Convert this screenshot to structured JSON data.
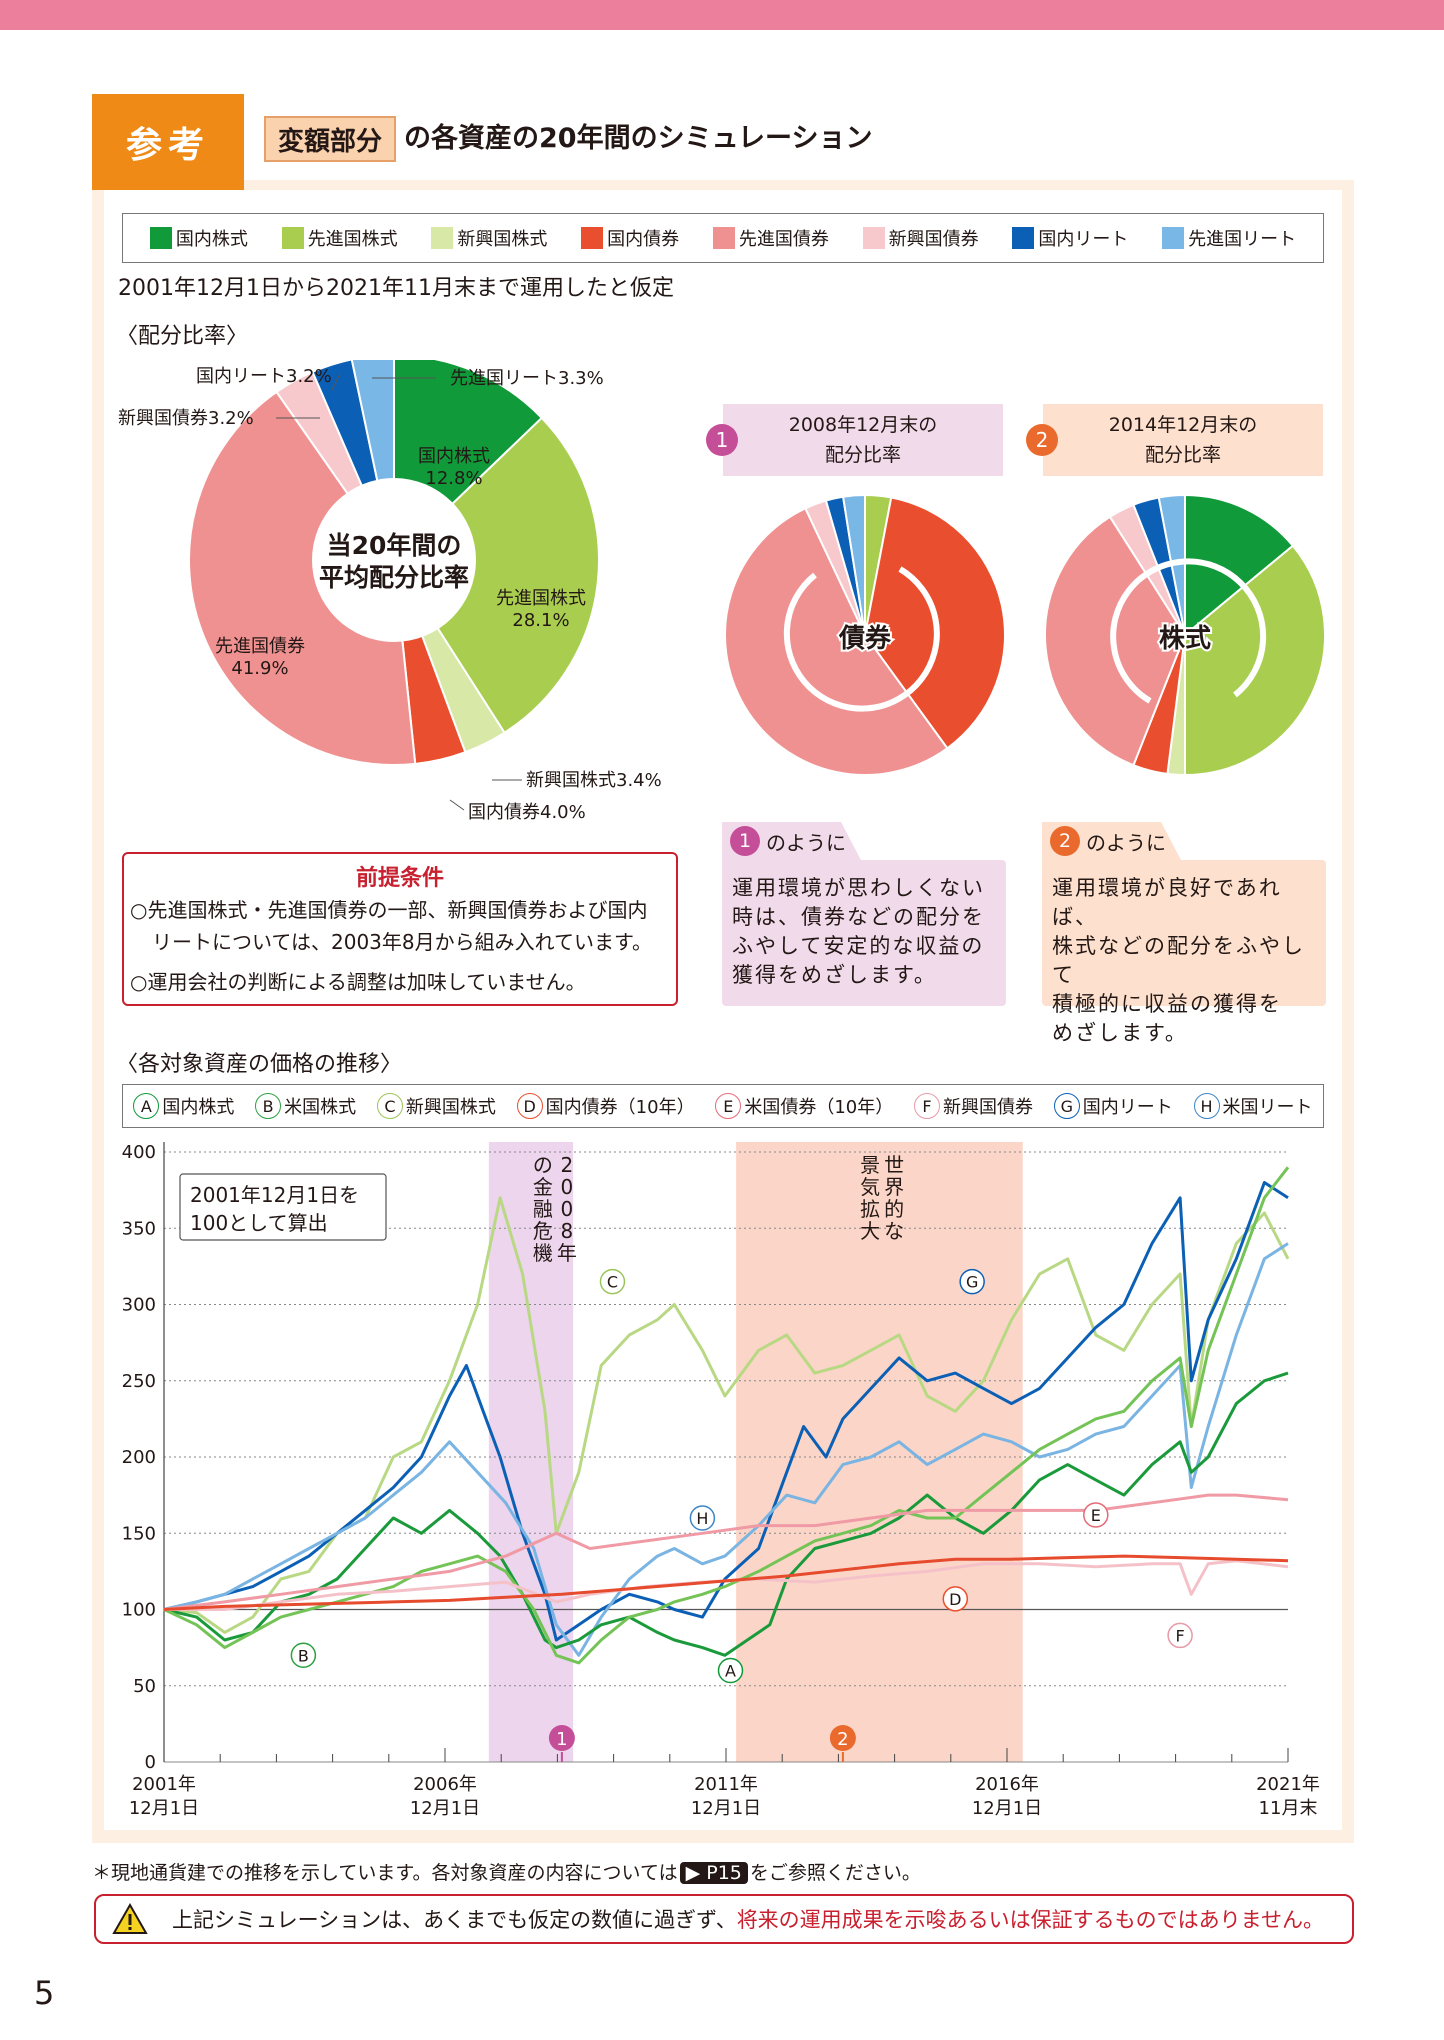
{
  "header": {
    "tab_label": "参考",
    "chip_label": "変額部分",
    "title_rest": "の各資産の20年間のシミュレーション"
  },
  "legend": [
    {
      "label": "国内株式",
      "color": "#109a3a"
    },
    {
      "label": "先進国株式",
      "color": "#a9ce4f"
    },
    {
      "label": "新興国株式",
      "color": "#d7e8a7"
    },
    {
      "label": "国内債券",
      "color": "#e94f2f"
    },
    {
      "label": "先進国債券",
      "color": "#f09191"
    },
    {
      "label": "新興国債券",
      "color": "#f7c9cd"
    },
    {
      "label": "国内リート",
      "color": "#0b60b6"
    },
    {
      "label": "先進国リート",
      "color": "#79b7e6"
    }
  ],
  "assumption": "2001年12月1日から2021年11月末まで運用したと仮定",
  "alloc_heading": "〈配分比率〉",
  "avg_pie": {
    "center_label_1": "当20年間の",
    "center_label_2": "平均配分比率",
    "slices": [
      {
        "name": "国内株式",
        "value": 12.8,
        "color": "#109a3a"
      },
      {
        "name": "先進国株式",
        "value": 28.1,
        "color": "#a9ce4f"
      },
      {
        "name": "新興国株式",
        "value": 3.4,
        "color": "#d7e8a7"
      },
      {
        "name": "国内債券",
        "value": 4.0,
        "color": "#e94f2f"
      },
      {
        "name": "先進国債券",
        "value": 41.9,
        "color": "#f09191"
      },
      {
        "name": "新興国債券",
        "value": 3.2,
        "color": "#f7c9cd"
      },
      {
        "name": "国内リート",
        "value": 3.2,
        "color": "#0b60b6"
      },
      {
        "name": "先進国リート",
        "value": 3.3,
        "color": "#79b7e6"
      }
    ],
    "labels": {
      "jp_stock": "国内株式\n12.8%",
      "dev_stock": "先進国株式\n28.1%",
      "dev_bond": "先進国債券\n41.9%",
      "em_stock": "新興国株式3.4%",
      "jp_bond": "国内債券4.0%",
      "em_bond": "新興国債券3.2%",
      "jp_reit": "国内リート3.2%",
      "dev_reit": "先進国リート3.3%"
    }
  },
  "pie_2008": {
    "badge": "1",
    "title_1": "2008年12月末の",
    "title_2": "配分比率",
    "center": "債券",
    "slices": [
      {
        "name": "先進国株式",
        "value": 3.0,
        "color": "#a9ce4f"
      },
      {
        "name": "国内債券",
        "value": 37.0,
        "color": "#e94f2f"
      },
      {
        "name": "先進国債券",
        "value": 53.0,
        "color": "#f09191"
      },
      {
        "name": "新興国債券",
        "value": 2.5,
        "color": "#f7c9cd"
      },
      {
        "name": "国内リート",
        "value": 2.0,
        "color": "#0b60b6"
      },
      {
        "name": "先進国リート",
        "value": 2.5,
        "color": "#79b7e6"
      }
    ]
  },
  "pie_2014": {
    "badge": "2",
    "title_1": "2014年12月末の",
    "title_2": "配分比率",
    "center": "株式",
    "slices": [
      {
        "name": "国内株式",
        "value": 14.0,
        "color": "#109a3a"
      },
      {
        "name": "先進国株式",
        "value": 36.0,
        "color": "#a9ce4f"
      },
      {
        "name": "新興国株式",
        "value": 2.0,
        "color": "#d7e8a7"
      },
      {
        "name": "国内債券",
        "value": 4.0,
        "color": "#e94f2f"
      },
      {
        "name": "先進国債券",
        "value": 35.0,
        "color": "#f09191"
      },
      {
        "name": "新興国債券",
        "value": 3.0,
        "color": "#f7c9cd"
      },
      {
        "name": "国内リート",
        "value": 3.0,
        "color": "#0b60b6"
      },
      {
        "name": "先進国リート",
        "value": 3.0,
        "color": "#79b7e6"
      }
    ]
  },
  "premise": {
    "title": "前提条件",
    "line1a": "○先進国株式・先進国債券の一部、新興国債券および国内",
    "line1b": "リートについては、2003年8月から組み入れています。",
    "line2": "○運用会社の判断による調整は加味していません。"
  },
  "card1": {
    "badge": "1",
    "tag": "のように",
    "lines": [
      "運用環境が思わしくない",
      "時は、債券などの配分を",
      "ふやして安定的な収益の",
      "獲得をめざします。"
    ],
    "bg": "#f1dbeb"
  },
  "card2": {
    "badge": "2",
    "tag": "のように",
    "lines": [
      "運用環境が良好であれば、",
      "株式などの配分をふやして",
      "積極的に収益の獲得を",
      "めざします。"
    ],
    "bg": "#fde0cd"
  },
  "price_heading": "〈各対象資産の価格の推移〉",
  "legend2": [
    {
      "key": "A",
      "label": "国内株式",
      "color": "#109a3a"
    },
    {
      "key": "B",
      "label": "米国株式",
      "color": "#2ea042"
    },
    {
      "key": "C",
      "label": "新興国株式",
      "color": "#9bc45a"
    },
    {
      "key": "D",
      "label": "国内債券（10年）",
      "color": "#e94f2f"
    },
    {
      "key": "E",
      "label": "米国債券（10年）",
      "color": "#e46b7a"
    },
    {
      "key": "F",
      "label": "新興国債券",
      "color": "#e89aa9"
    },
    {
      "key": "G",
      "label": "国内リート",
      "color": "#0b60b6"
    },
    {
      "key": "H",
      "label": "米国リート",
      "color": "#3b86c9"
    }
  ],
  "chart_data": {
    "type": "line",
    "yticks": [
      "400",
      "350",
      "300",
      "250",
      "200",
      "150",
      "100",
      "50",
      "0"
    ],
    "ylim": [
      0,
      400
    ],
    "xlim": [
      2001.92,
      2021.92
    ],
    "xtick_labels": [
      {
        "l1": "2001年",
        "l2": "12月1日"
      },
      {
        "l1": "2006年",
        "l2": "12月1日"
      },
      {
        "l1": "2011年",
        "l2": "12月1日"
      },
      {
        "l1": "2016年",
        "l2": "12月1日"
      },
      {
        "l1": "2021年",
        "l2": "11月末"
      }
    ],
    "base_note_1": "2001年12月1日を",
    "base_note_2": "100として算出",
    "crisis_label": "2008年の金融危機",
    "boom_label": "世界的な景気拡大",
    "crisis_range": [
      2007.7,
      2009.2
    ],
    "boom_range": [
      2012.1,
      2017.2
    ],
    "marker_1": "1",
    "marker_2": "2",
    "series": [
      {
        "key": "C",
        "name": "新興国株式",
        "color": "#b9d884",
        "x": [
          2001.92,
          2002.5,
          2003.0,
          2003.5,
          2004.0,
          2004.5,
          2005.0,
          2005.5,
          2006.0,
          2006.5,
          2007.0,
          2007.5,
          2007.9,
          2008.3,
          2008.7,
          2008.9,
          2009.3,
          2009.7,
          2010.2,
          2010.7,
          2011.0,
          2011.5,
          2011.9,
          2012.5,
          2013.0,
          2013.5,
          2014.0,
          2014.5,
          2015.0,
          2015.5,
          2016.0,
          2016.5,
          2017.0,
          2017.5,
          2018.0,
          2018.5,
          2019.0,
          2019.5,
          2020.0,
          2020.2,
          2020.5,
          2021.0,
          2021.5,
          2021.92
        ],
        "y": [
          100,
          98,
          85,
          95,
          120,
          125,
          150,
          160,
          200,
          210,
          250,
          300,
          370,
          320,
          230,
          150,
          190,
          260,
          280,
          290,
          300,
          270,
          240,
          270,
          280,
          255,
          260,
          270,
          280,
          240,
          230,
          250,
          290,
          320,
          330,
          280,
          270,
          300,
          320,
          220,
          290,
          340,
          360,
          330
        ]
      },
      {
        "key": "G",
        "name": "国内リート",
        "color": "#0b60b6",
        "x": [
          2001.92,
          2002.5,
          2003.0,
          2003.5,
          2004.0,
          2004.5,
          2005.0,
          2005.5,
          2006.0,
          2006.5,
          2007.0,
          2007.3,
          2007.6,
          2007.9,
          2008.3,
          2008.7,
          2008.9,
          2009.3,
          2009.7,
          2010.2,
          2010.7,
          2011.0,
          2011.5,
          2011.9,
          2012.5,
          2013.0,
          2013.3,
          2013.7,
          2014.0,
          2014.5,
          2015.0,
          2015.5,
          2016.0,
          2016.5,
          2017.0,
          2017.5,
          2018.0,
          2018.5,
          2019.0,
          2019.5,
          2020.0,
          2020.2,
          2020.5,
          2021.0,
          2021.5,
          2021.92
        ],
        "y": [
          100,
          105,
          110,
          115,
          125,
          135,
          150,
          165,
          180,
          200,
          240,
          260,
          230,
          200,
          150,
          110,
          80,
          90,
          100,
          110,
          105,
          100,
          95,
          120,
          140,
          190,
          220,
          200,
          225,
          245,
          265,
          250,
          255,
          245,
          235,
          245,
          265,
          285,
          300,
          340,
          370,
          250,
          290,
          330,
          380,
          370
        ]
      },
      {
        "key": "H",
        "name": "米国リート",
        "color": "#7ab4e3",
        "x": [
          2001.92,
          2002.5,
          2003.0,
          2003.5,
          2004.0,
          2004.5,
          2005.0,
          2005.5,
          2006.0,
          2006.5,
          2007.0,
          2007.5,
          2008.0,
          2008.5,
          2008.9,
          2009.3,
          2009.7,
          2010.2,
          2010.7,
          2011.0,
          2011.5,
          2011.9,
          2012.5,
          2013.0,
          2013.5,
          2014.0,
          2014.5,
          2015.0,
          2015.5,
          2016.0,
          2016.5,
          2017.0,
          2017.5,
          2018.0,
          2018.5,
          2019.0,
          2019.5,
          2020.0,
          2020.2,
          2020.5,
          2021.0,
          2021.5,
          2021.92
        ],
        "y": [
          100,
          105,
          110,
          120,
          130,
          140,
          150,
          160,
          175,
          190,
          210,
          190,
          170,
          140,
          90,
          70,
          95,
          120,
          135,
          140,
          130,
          135,
          155,
          175,
          170,
          195,
          200,
          210,
          195,
          205,
          215,
          210,
          200,
          205,
          215,
          220,
          240,
          260,
          180,
          220,
          280,
          330,
          340
        ]
      },
      {
        "key": "A",
        "name": "国内株式",
        "color": "#1a9a3a",
        "x": [
          2001.92,
          2002.5,
          2003.0,
          2003.5,
          2004.0,
          2004.5,
          2005.0,
          2005.5,
          2006.0,
          2006.5,
          2007.0,
          2007.5,
          2007.9,
          2008.3,
          2008.7,
          2008.9,
          2009.3,
          2009.7,
          2010.2,
          2010.7,
          2011.0,
          2011.5,
          2011.9,
          2012.3,
          2012.7,
          2013.0,
          2013.5,
          2014.0,
          2014.5,
          2015.0,
          2015.5,
          2016.0,
          2016.5,
          2017.0,
          2017.5,
          2018.0,
          2018.5,
          2019.0,
          2019.5,
          2020.0,
          2020.2,
          2020.5,
          2021.0,
          2021.5,
          2021.92
        ],
        "y": [
          100,
          95,
          80,
          85,
          105,
          110,
          120,
          140,
          160,
          150,
          165,
          150,
          135,
          110,
          80,
          75,
          80,
          90,
          95,
          85,
          80,
          75,
          70,
          80,
          90,
          120,
          140,
          145,
          150,
          160,
          175,
          160,
          150,
          165,
          185,
          195,
          185,
          175,
          195,
          210,
          190,
          200,
          235,
          250,
          255
        ]
      },
      {
        "key": "B",
        "name": "米国株式",
        "color": "#74c356",
        "x": [
          2001.92,
          2002.5,
          2003.0,
          2003.5,
          2004.0,
          2004.5,
          2005.0,
          2005.5,
          2006.0,
          2006.5,
          2007.0,
          2007.5,
          2008.0,
          2008.5,
          2008.9,
          2009.3,
          2009.7,
          2010.2,
          2010.7,
          2011.0,
          2011.5,
          2011.9,
          2012.5,
          2013.0,
          2013.5,
          2014.0,
          2014.5,
          2015.0,
          2015.5,
          2016.0,
          2016.5,
          2017.0,
          2017.5,
          2018.0,
          2018.5,
          2019.0,
          2019.5,
          2020.0,
          2020.2,
          2020.5,
          2021.0,
          2021.5,
          2021.92
        ],
        "y": [
          100,
          90,
          75,
          85,
          95,
          100,
          105,
          110,
          115,
          125,
          130,
          135,
          125,
          100,
          70,
          65,
          80,
          95,
          100,
          105,
          110,
          115,
          125,
          135,
          145,
          150,
          155,
          165,
          160,
          160,
          175,
          190,
          205,
          215,
          225,
          230,
          250,
          265,
          220,
          270,
          320,
          370,
          390
        ]
      },
      {
        "key": "E",
        "name": "米国債券（10年）",
        "color": "#ef9aa4",
        "x": [
          2001.92,
          2003.0,
          2004.0,
          2005.0,
          2006.0,
          2007.0,
          2008.0,
          2008.9,
          2009.5,
          2010.5,
          2011.5,
          2012.5,
          2013.5,
          2014.5,
          2015.5,
          2016.5,
          2017.5,
          2018.5,
          2019.5,
          2020.5,
          2021.0,
          2021.92
        ],
        "y": [
          100,
          105,
          110,
          115,
          120,
          125,
          135,
          150,
          140,
          145,
          150,
          155,
          155,
          160,
          165,
          165,
          165,
          165,
          170,
          175,
          175,
          172
        ]
      },
      {
        "key": "F",
        "name": "新興国債券",
        "color": "#f5c1c9",
        "x": [
          2001.92,
          2003.0,
          2004.0,
          2005.0,
          2006.0,
          2007.0,
          2008.0,
          2008.9,
          2009.5,
          2010.5,
          2011.5,
          2012.5,
          2013.5,
          2014.5,
          2015.5,
          2016.5,
          2017.5,
          2018.5,
          2019.5,
          2020.0,
          2020.2,
          2020.5,
          2021.0,
          2021.92
        ],
        "y": [
          100,
          100,
          105,
          110,
          112,
          115,
          118,
          105,
          110,
          115,
          118,
          120,
          118,
          122,
          125,
          130,
          130,
          128,
          130,
          130,
          110,
          130,
          132,
          128
        ]
      },
      {
        "key": "D",
        "name": "国内債券（10年）",
        "color": "#e54b2c",
        "x": [
          2001.92,
          2003.0,
          2004.0,
          2005.0,
          2006.0,
          2007.0,
          2008.0,
          2009.0,
          2010.0,
          2011.0,
          2012.0,
          2013.0,
          2014.0,
          2015.0,
          2016.0,
          2017.0,
          2018.0,
          2019.0,
          2020.0,
          2021.0,
          2021.92
        ],
        "y": [
          100,
          102,
          103,
          104,
          105,
          106,
          108,
          110,
          113,
          116,
          119,
          122,
          126,
          130,
          133,
          133,
          134,
          135,
          134,
          133,
          132
        ]
      }
    ],
    "point_labels": [
      {
        "key": "C",
        "x": 2009.9,
        "y": 315
      },
      {
        "key": "H",
        "x": 2011.5,
        "y": 160
      },
      {
        "key": "G",
        "x": 2016.3,
        "y": 315
      },
      {
        "key": "E",
        "x": 2018.5,
        "y": 162
      },
      {
        "key": "D",
        "x": 2016.0,
        "y": 107
      },
      {
        "key": "F",
        "x": 2020.0,
        "y": 83
      },
      {
        "key": "A",
        "x": 2012.0,
        "y": 60
      },
      {
        "key": "B",
        "x": 2004.4,
        "y": 70
      }
    ]
  },
  "footer_note_a": "＊現地通貨建での推移を示しています。各対象資産の内容については",
  "footer_ref": "▶ P15",
  "footer_note_b": "をご参照ください。",
  "warning_a": "上記シミュレーションは、あくまでも仮定の数値に過ぎず、",
  "warning_b": "将来の運用成果を示唆あるいは保証するものではありません。",
  "page_number": "5"
}
